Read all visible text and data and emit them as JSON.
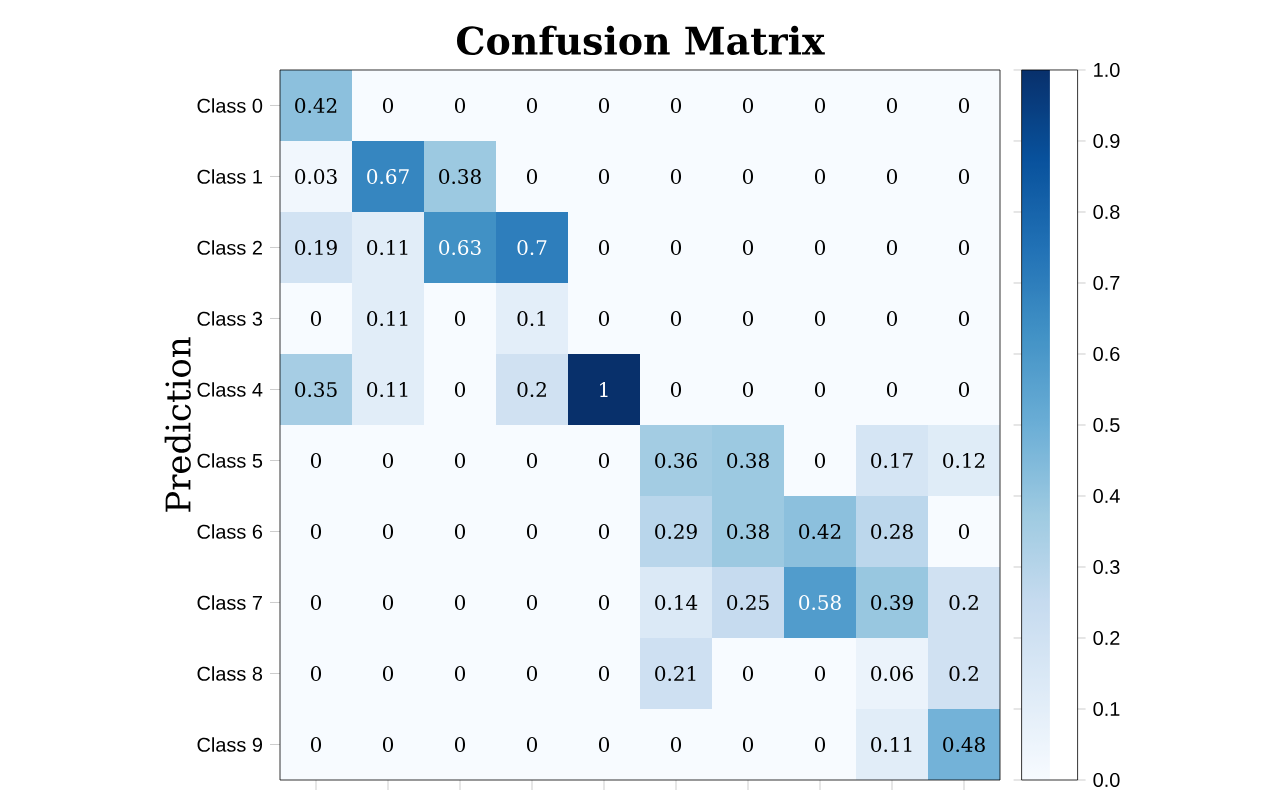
{
  "chart_data": {
    "type": "heatmap",
    "title": "Confusion Matrix",
    "ylabel": "Prediction",
    "categories": [
      null,
      null,
      null,
      null,
      null,
      null,
      null,
      null,
      null,
      null
    ],
    "y_categories": [
      "Class 0",
      "Class 1",
      "Class 2",
      "Class 3",
      "Class 4",
      "Class 5",
      "Class 6",
      "Class 7",
      "Class 8",
      "Class 9"
    ],
    "cells": [
      [
        0.42,
        0,
        0,
        0,
        0,
        0,
        0,
        0,
        0,
        0
      ],
      [
        0.03,
        0.67,
        0.38,
        0,
        0,
        0,
        0,
        0,
        0,
        0
      ],
      [
        0.19,
        0.11,
        0.63,
        0.7,
        0,
        0,
        0,
        0,
        0,
        0
      ],
      [
        0,
        0.11,
        0,
        0.1,
        0,
        0,
        0,
        0,
        0,
        0
      ],
      [
        0.35,
        0.11,
        0,
        0.2,
        1,
        0,
        0,
        0,
        0,
        0
      ],
      [
        0,
        0,
        0,
        0,
        0,
        0.36,
        0.38,
        0,
        0.17,
        0.12
      ],
      [
        0,
        0,
        0,
        0,
        0,
        0.29,
        0.38,
        0.42,
        0.28,
        0
      ],
      [
        0,
        0,
        0,
        0,
        0,
        0.14,
        0.25,
        0.58,
        0.39,
        0.2
      ],
      [
        0,
        0,
        0,
        0,
        0,
        0.21,
        0,
        0,
        0.06,
        0.2
      ],
      [
        0,
        0,
        0,
        0,
        0,
        0,
        0,
        0,
        0.11,
        0.48
      ]
    ],
    "data_labels": true,
    "clim": [
      0,
      1
    ],
    "cticks": [
      {
        "value": 0,
        "label": "0.0"
      },
      {
        "value": 0.1,
        "label": "0.1"
      },
      {
        "value": 0.2,
        "label": "0.2"
      },
      {
        "value": 0.3,
        "label": "0.3"
      },
      {
        "value": 0.4,
        "label": "0.4"
      },
      {
        "value": 0.5,
        "label": "0.5"
      },
      {
        "value": 0.6,
        "label": "0.6"
      },
      {
        "value": 0.7,
        "label": "0.7"
      },
      {
        "value": 0.8,
        "label": "0.8"
      },
      {
        "value": 0.9,
        "label": "0.9"
      },
      {
        "value": 1,
        "label": "1.0"
      }
    ]
  }
}
